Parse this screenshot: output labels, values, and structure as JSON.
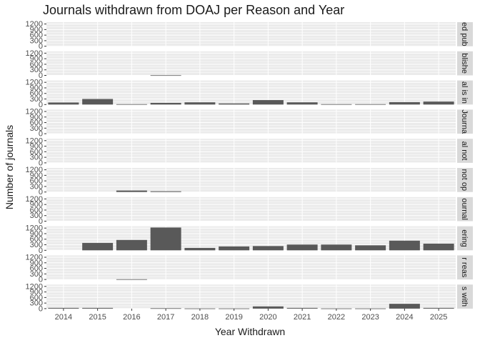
{
  "chart_data": {
    "type": "bar",
    "title": "Journals withdrawn from DOAJ per Reason and Year",
    "xlabel": "Year Withdrawn",
    "ylabel": "Number of journals",
    "categories": [
      "2014",
      "2015",
      "2016",
      "2017",
      "2018",
      "2019",
      "2020",
      "2021",
      "2022",
      "2023",
      "2024",
      "2025"
    ],
    "ylim": [
      0,
      1300
    ],
    "yticks": [
      0,
      300,
      600,
      900,
      1200
    ],
    "grid": true,
    "facets": [
      {
        "strip": "ed pub",
        "values": [
          0,
          0,
          0,
          0,
          0,
          0,
          0,
          0,
          0,
          0,
          0,
          0
        ]
      },
      {
        "strip": "blishe",
        "values": [
          0,
          0,
          0,
          8,
          0,
          0,
          0,
          0,
          0,
          0,
          0,
          0
        ]
      },
      {
        "strip": "al is in",
        "values": [
          110,
          300,
          20,
          90,
          120,
          60,
          240,
          120,
          20,
          20,
          130,
          160
        ]
      },
      {
        "strip": "Journa",
        "values": [
          0,
          0,
          0,
          0,
          0,
          0,
          0,
          0,
          0,
          0,
          0,
          0
        ]
      },
      {
        "strip": "al not",
        "values": [
          0,
          0,
          0,
          0,
          0,
          0,
          0,
          0,
          0,
          0,
          0,
          0
        ]
      },
      {
        "strip": "not op",
        "values": [
          0,
          0,
          80,
          40,
          0,
          0,
          0,
          0,
          0,
          0,
          0,
          0
        ]
      },
      {
        "strip": "ournal",
        "values": [
          0,
          0,
          0,
          0,
          0,
          0,
          0,
          0,
          0,
          0,
          0,
          0
        ]
      },
      {
        "strip": "ering",
        "values": [
          0,
          400,
          560,
          1230,
          130,
          210,
          230,
          310,
          310,
          270,
          520,
          360
        ]
      },
      {
        "strip": "r reas",
        "values": [
          0,
          0,
          12,
          0,
          0,
          0,
          0,
          0,
          0,
          0,
          0,
          0
        ]
      },
      {
        "strip": "s with",
        "values": [
          40,
          40,
          0,
          20,
          10,
          10,
          120,
          40,
          10,
          10,
          260,
          40
        ]
      }
    ]
  }
}
